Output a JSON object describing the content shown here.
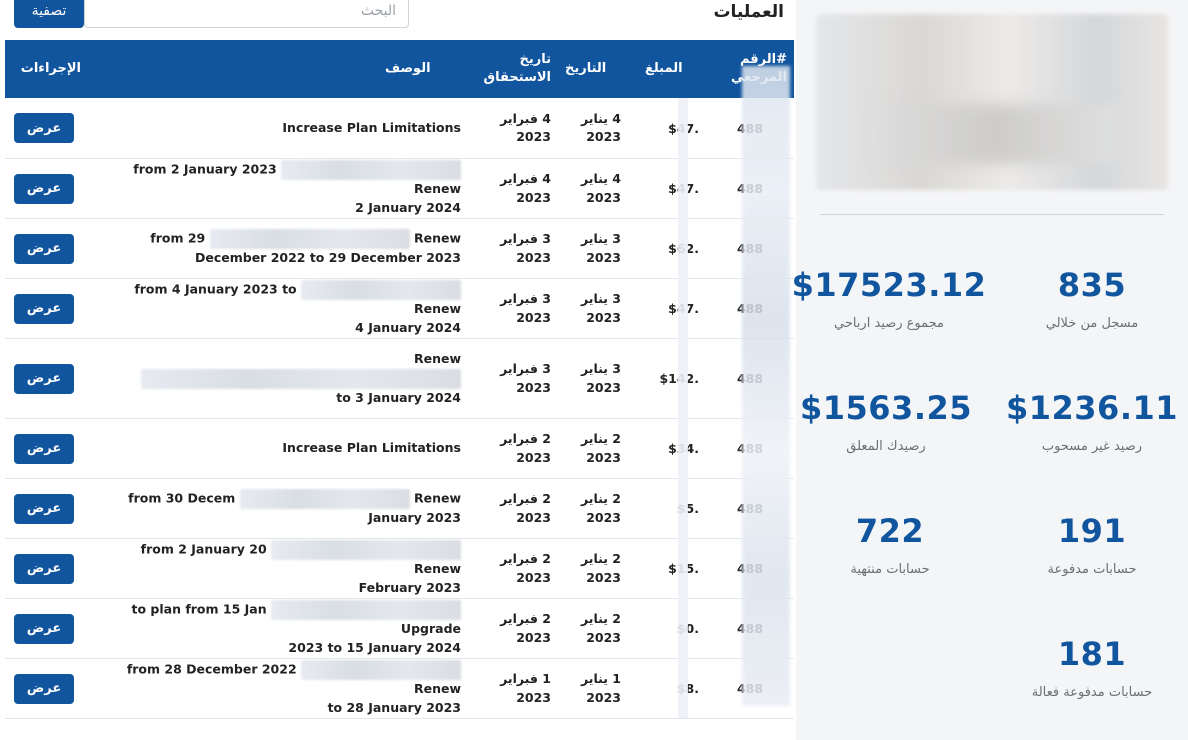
{
  "header": {
    "title": "العمليات",
    "search_placeholder": "البحث",
    "filter_label": "تصفية"
  },
  "table": {
    "columns": [
      "#الرقم المرجعي",
      "المبلغ",
      "التاريخ",
      "تاريخ الاستحقاق",
      "الوصف",
      "الإجراءات"
    ],
    "rows": [
      {
        "ref": "488",
        "amount": "$47.",
        "date": "4 يناير 2023",
        "due": "4 فبراير 2023",
        "desc_a": "Increase Plan Limitations",
        "desc_b": "",
        "action": "عرض"
      },
      {
        "ref": "488",
        "amount": "$47.",
        "date": "4 يناير 2023",
        "due": "4 فبراير 2023",
        "desc_a": "from 2 January 2023",
        "desc_a2": "Renew",
        "desc_b": "2 January 2024",
        "action": "عرض"
      },
      {
        "ref": "488",
        "amount": "$62.",
        "date": "3 يناير 2023",
        "due": "3 فبراير 2023",
        "desc_a": "from 29",
        "desc_a2": "Renew",
        "desc_b": "December 2022 to 29 December 2023",
        "action": "عرض"
      },
      {
        "ref": "488",
        "amount": "$47.",
        "date": "3 يناير 2023",
        "due": "3 فبراير 2023",
        "desc_a": "from 4 January 2023 to",
        "desc_a2": "Renew",
        "desc_b": "4 January 2024",
        "action": "عرض"
      },
      {
        "ref": "488",
        "amount": "$142.",
        "date": "3 يناير 2023",
        "due": "3 فبراير 2023",
        "desc_a": "",
        "desc_a2": "Renew",
        "desc_b": "to 3 January 2024",
        "action": "عرض"
      },
      {
        "ref": "488",
        "amount": "$34.",
        "date": "2 يناير 2023",
        "due": "2 فبراير 2023",
        "desc_a": "Increase Plan Limitations",
        "desc_b": "",
        "action": "عرض"
      },
      {
        "ref": "488",
        "amount": "$5.",
        "date": "2 يناير 2023",
        "due": "2 فبراير 2023",
        "desc_a": "from 30 Decem",
        "desc_a2": "Renew",
        "desc_b": "January 2023",
        "action": "عرض"
      },
      {
        "ref": "488",
        "amount": "$15.",
        "date": "2 يناير 2023",
        "due": "2 فبراير 2023",
        "desc_a": "from 2 January 20",
        "desc_a2": "Renew",
        "desc_b": "February 2023",
        "action": "عرض"
      },
      {
        "ref": "488",
        "amount": "$0.",
        "date": "2 يناير 2023",
        "due": "2 فبراير 2023",
        "desc_a": "to plan from 15 Jan",
        "desc_a2": "Upgrade",
        "desc_b": "2023 to 15 January 2024",
        "action": "عرض"
      },
      {
        "ref": "488",
        "amount": "$8.",
        "date": "1 يناير 2023",
        "due": "1 فبراير 2023",
        "desc_a": "from 28 December 2022",
        "desc_a2": "Renew",
        "desc_b": "to 28 January 2023",
        "action": "عرض"
      }
    ]
  },
  "stats": {
    "registered_count": "835",
    "registered_label": "مسجل من خلالي",
    "total_profit": "$17523.12",
    "total_profit_label": "مجموع رصيد ارباحي",
    "unwithdrawn": "$1236.11",
    "unwithdrawn_label": "رصيد غير مسحوب",
    "pending": "$1563.25",
    "pending_label": "رصيدك المعلق",
    "paid_accounts": "191",
    "paid_accounts_label": "حسابات مدفوعة",
    "expired_accounts": "722",
    "expired_accounts_label": "حسابات منتهية",
    "active_paid": "181",
    "active_paid_label": "حسابات مدفوعة فعالة"
  },
  "colors": {
    "primary": "#11559e",
    "panel_bg": "#f4f5f7",
    "stat_label": "#6b6f75"
  }
}
